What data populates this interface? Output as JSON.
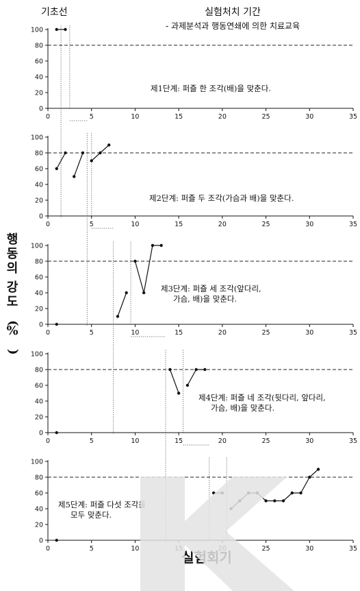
{
  "header": {
    "baseline_label": "기초선",
    "treatment_label": "실험처치 기간",
    "treatment_sub": "- 과제분석과 행동연쇄에 의한 치료교육"
  },
  "ylabel": "행동의 강도 (%)",
  "xlabel": "실험회기",
  "colors": {
    "line": "#111111",
    "criterion": "#222222",
    "phase": "#888888"
  },
  "chart_data": [
    {
      "type": "line",
      "annotation": "제1단계: 퍼즐 한 조각(배)을 맞춘다.",
      "xlim": [
        0,
        35
      ],
      "ylim": [
        0,
        100
      ],
      "xticks": [
        0,
        5,
        10,
        15,
        20,
        25,
        30,
        35
      ],
      "yticks": [
        0,
        20,
        40,
        60,
        80,
        100
      ],
      "criterion": 80,
      "segments": [
        [
          [
            1,
            100
          ],
          [
            2,
            100
          ]
        ]
      ]
    },
    {
      "type": "line",
      "annotation": "제2단계: 퍼즐 두 조각(가슴과 배)을 맞춘다.",
      "xlim": [
        0,
        35
      ],
      "ylim": [
        0,
        100
      ],
      "xticks": [
        0,
        5,
        10,
        15,
        20,
        25,
        30,
        35
      ],
      "yticks": [
        0,
        20,
        40,
        60,
        80,
        100
      ],
      "criterion": 80,
      "segments": [
        [
          [
            1,
            60
          ],
          [
            2,
            80
          ]
        ],
        [
          [
            3,
            50
          ],
          [
            4,
            80
          ]
        ],
        [
          [
            5,
            70
          ],
          [
            6,
            80
          ],
          [
            7,
            90
          ]
        ]
      ]
    },
    {
      "type": "line",
      "annotation": "제3단계: 퍼즐 세 조각(앞다리, 가슴, 배)을 맞춘다.",
      "xlim": [
        0,
        35
      ],
      "ylim": [
        0,
        100
      ],
      "xticks": [
        0,
        5,
        10,
        15,
        20,
        25,
        30,
        35
      ],
      "yticks": [
        0,
        20,
        40,
        60,
        80,
        100
      ],
      "criterion": 80,
      "segments": [
        [
          [
            1,
            0
          ]
        ],
        [
          [
            8,
            10
          ],
          [
            9,
            40
          ]
        ],
        [
          [
            10,
            80
          ],
          [
            11,
            40
          ],
          [
            12,
            100
          ],
          [
            13,
            100
          ]
        ]
      ]
    },
    {
      "type": "line",
      "annotation": "제4단계: 퍼즐 네 조각(뒷다리, 앞다리, 가슴, 배)을 맞춘다.",
      "xlim": [
        0,
        35
      ],
      "ylim": [
        0,
        100
      ],
      "xticks": [
        0,
        5,
        10,
        15,
        20,
        25,
        30,
        35
      ],
      "yticks": [
        0,
        20,
        40,
        60,
        80,
        100
      ],
      "criterion": 80,
      "segments": [
        [
          [
            1,
            0
          ]
        ],
        [
          [
            14,
            80
          ],
          [
            15,
            50
          ]
        ],
        [
          [
            16,
            60
          ],
          [
            17,
            80
          ],
          [
            18,
            80
          ]
        ]
      ]
    },
    {
      "type": "line",
      "annotation": "제5단계: 퍼즐 다섯 조각을 모두 맞춘다.",
      "xlim": [
        0,
        35
      ],
      "ylim": [
        0,
        100
      ],
      "xticks": [
        0,
        5,
        10,
        15,
        20,
        25,
        30,
        35
      ],
      "yticks": [
        0,
        20,
        40,
        60,
        80,
        100
      ],
      "criterion": 80,
      "segments": [
        [
          [
            1,
            0
          ]
        ],
        [
          [
            19,
            60
          ],
          [
            20,
            60
          ]
        ],
        [
          [
            21,
            40
          ],
          [
            22,
            50
          ],
          [
            23,
            60
          ],
          [
            24,
            60
          ],
          [
            25,
            50
          ],
          [
            26,
            50
          ],
          [
            27,
            50
          ],
          [
            28,
            60
          ],
          [
            29,
            60
          ],
          [
            30,
            80
          ],
          [
            31,
            90
          ]
        ]
      ]
    }
  ],
  "phase_lines": [
    {
      "x": 1.5,
      "from_panel": 0,
      "to_panel": 1
    },
    {
      "x": 4.5,
      "from_panel": 1,
      "to_panel": 2
    },
    {
      "x": 7.5,
      "from_panel": 2,
      "to_panel": 3
    },
    {
      "x": 13.5,
      "from_panel": 3,
      "to_panel": 4
    },
    {
      "x": 18.5,
      "from_panel": 4,
      "to_panel": 4
    }
  ],
  "extra_phase_lines": [
    {
      "x": 2.5,
      "from_panel": 0,
      "to_panel": 0
    },
    {
      "x": 5.0,
      "from_panel": 1,
      "to_panel": 1
    },
    {
      "x": 9.5,
      "from_panel": 2,
      "to_panel": 2
    },
    {
      "x": 15.5,
      "from_panel": 3,
      "to_panel": 3
    },
    {
      "x": 20.5,
      "from_panel": 4,
      "to_panel": 4
    }
  ]
}
